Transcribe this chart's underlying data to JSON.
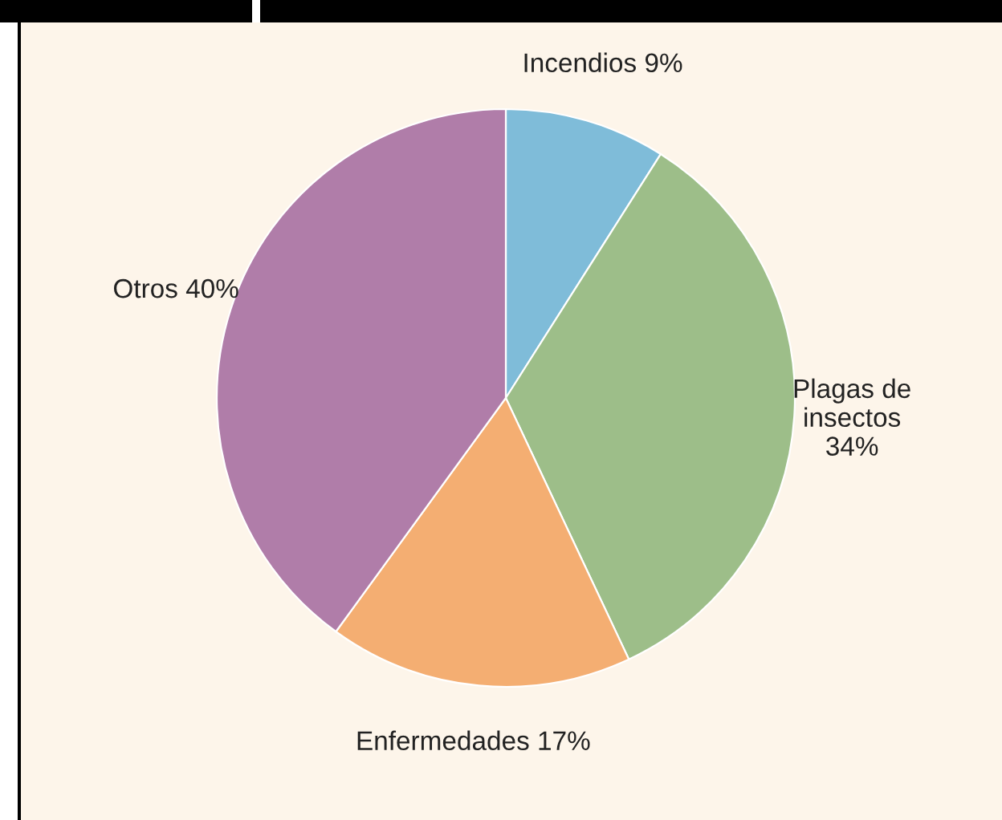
{
  "chart_data": {
    "type": "pie",
    "categories": [
      "Incendios",
      "Plagas de\ninsectos",
      "Enfermedades",
      "Otros"
    ],
    "values": [
      9,
      34,
      17,
      40
    ],
    "value_labels": [
      "9%",
      "34%",
      "17%",
      "40%"
    ],
    "colors": [
      "#7fbcd9",
      "#9dbe89",
      "#f4ae72",
      "#b07da9"
    ],
    "legend": false
  }
}
